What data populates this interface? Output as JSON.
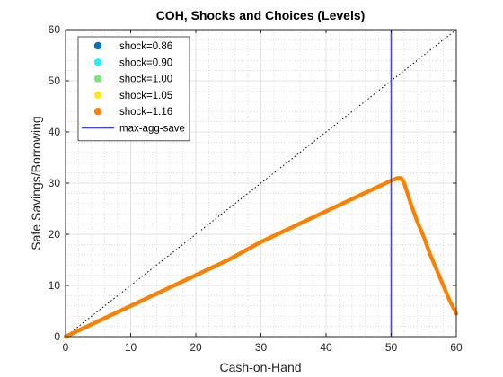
{
  "chart_data": {
    "type": "scatter",
    "title": "COH, Shocks and Choices (Levels)",
    "xlabel": "Cash-on-Hand",
    "ylabel": "Safe Savings/Borrowing",
    "xlim": [
      0,
      60
    ],
    "ylim": [
      0,
      60
    ],
    "xticks": [
      "0",
      "10",
      "20",
      "30",
      "40",
      "50",
      "60"
    ],
    "yticks": [
      "0",
      "10",
      "20",
      "30",
      "40",
      "50",
      "60"
    ],
    "grid": true,
    "minor_grid": true,
    "legend_position": "top-left",
    "series": [
      {
        "name": "shock=0.86",
        "color": "#0072BD",
        "points": [
          [
            0,
            0
          ],
          [
            5,
            3
          ],
          [
            10,
            6
          ],
          [
            15,
            9
          ],
          [
            20,
            12
          ],
          [
            25,
            15
          ],
          [
            30,
            18.5
          ],
          [
            35,
            21.5
          ],
          [
            40,
            24.5
          ],
          [
            45,
            27.5
          ],
          [
            50,
            30.5
          ],
          [
            51,
            31
          ],
          [
            52,
            30.5
          ]
        ]
      },
      {
        "name": "shock=0.90",
        "color": "#1FF4F4",
        "points": [
          [
            0,
            0
          ],
          [
            5,
            3
          ],
          [
            10,
            6
          ],
          [
            15,
            9
          ],
          [
            20,
            12
          ],
          [
            25,
            15
          ],
          [
            30,
            18.5
          ],
          [
            35,
            21.5
          ],
          [
            40,
            24.5
          ],
          [
            45,
            27.5
          ],
          [
            50,
            30.5
          ],
          [
            51,
            31
          ],
          [
            52,
            30.5
          ]
        ]
      },
      {
        "name": "shock=1.00",
        "color": "#7AE67A",
        "points": [
          [
            0,
            0
          ],
          [
            5,
            3
          ],
          [
            10,
            6
          ],
          [
            15,
            9
          ],
          [
            20,
            12
          ],
          [
            25,
            15
          ],
          [
            30,
            18.5
          ],
          [
            35,
            21.5
          ],
          [
            40,
            24.5
          ],
          [
            45,
            27.5
          ],
          [
            50,
            30.5
          ],
          [
            51,
            31
          ],
          [
            52,
            30.5
          ]
        ]
      },
      {
        "name": "shock=1.05",
        "color": "#FFE81A",
        "points": [
          [
            0,
            0
          ],
          [
            5,
            3
          ],
          [
            10,
            6
          ],
          [
            15,
            9
          ],
          [
            20,
            12
          ],
          [
            25,
            15
          ],
          [
            30,
            18.5
          ],
          [
            35,
            21.5
          ],
          [
            40,
            24.5
          ],
          [
            45,
            27.5
          ],
          [
            50,
            30.5
          ],
          [
            51,
            31
          ],
          [
            52,
            30.5
          ]
        ]
      },
      {
        "name": "shock=1.16",
        "color": "#FF7F00",
        "points": [
          [
            0,
            0
          ],
          [
            2,
            1.2
          ],
          [
            5,
            3
          ],
          [
            10,
            6
          ],
          [
            15,
            9
          ],
          [
            20,
            12
          ],
          [
            25,
            15
          ],
          [
            30,
            18.5
          ],
          [
            35,
            21.5
          ],
          [
            40,
            24.5
          ],
          [
            45,
            27.5
          ],
          [
            48,
            29.3
          ],
          [
            50,
            30.5
          ],
          [
            51,
            31
          ],
          [
            51.5,
            31
          ],
          [
            52,
            30
          ],
          [
            53,
            26
          ],
          [
            54,
            22.5
          ],
          [
            55,
            19.5
          ],
          [
            56,
            16
          ],
          [
            57,
            13
          ],
          [
            58,
            10
          ],
          [
            59,
            7
          ],
          [
            60,
            4.5
          ]
        ]
      }
    ],
    "vline": {
      "name": "max-agg-save",
      "x": 50,
      "color": "#4040FF"
    },
    "diagonal": {
      "from": [
        0,
        0
      ],
      "to": [
        60,
        60
      ],
      "color": "#000000"
    }
  }
}
